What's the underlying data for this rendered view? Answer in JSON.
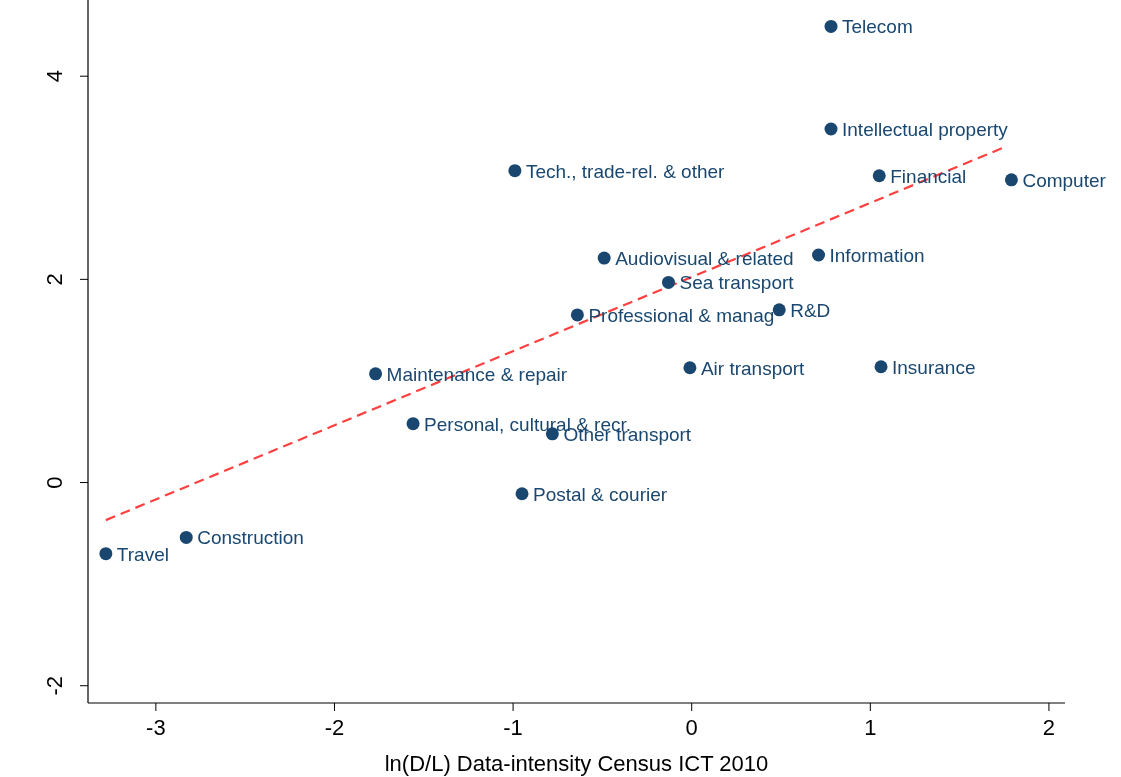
{
  "chart_data": {
    "type": "scatter",
    "xlabel": "ln(D/L) Data-intensity Census ICT 2010",
    "xlim": [
      -3.38,
      2.09
    ],
    "xticks": [
      -3,
      -2,
      -1,
      0,
      1,
      2
    ],
    "ylim": [
      -2.17,
      4.75
    ],
    "yticks": [
      -2,
      0,
      2,
      4
    ],
    "grid": false,
    "marker": "circle",
    "series": [
      {
        "color": "#1a476f",
        "x": [
          0.78,
          0.78,
          -0.99,
          1.05,
          1.79,
          -0.49,
          0.71,
          -0.13,
          -0.64,
          0.49,
          -1.77,
          -0.01,
          1.06,
          -1.56,
          -0.78,
          -0.95,
          -2.83,
          -3.28
        ],
        "values": [
          4.49,
          3.48,
          3.07,
          3.02,
          2.98,
          2.21,
          2.24,
          1.97,
          1.65,
          1.7,
          1.07,
          1.13,
          1.14,
          0.58,
          0.48,
          -0.11,
          -0.54,
          -0.7
        ]
      },
      {
        "type": "line",
        "color": "#ff4040",
        "line_style": "dashed",
        "marker": "none",
        "x": [
          -3.28,
          1.75
        ],
        "values": [
          -0.37,
          3.3
        ]
      }
    ],
    "annotations": [
      {
        "text": "Telecom",
        "x": 0.78,
        "y": 4.49
      },
      {
        "text": "Intellectual property",
        "x": 0.78,
        "y": 3.48
      },
      {
        "text": "Tech., trade-rel. & other",
        "x": -0.99,
        "y": 3.07
      },
      {
        "text": "Financial",
        "x": 1.05,
        "y": 3.02
      },
      {
        "text": "Computer",
        "x": 1.79,
        "y": 2.98
      },
      {
        "text": "Audiovisual & related",
        "x": -0.49,
        "y": 2.21
      },
      {
        "text": "Information",
        "x": 0.71,
        "y": 2.24
      },
      {
        "text": "Sea transport",
        "x": -0.13,
        "y": 1.97
      },
      {
        "text": "Professional & manag",
        "x": -0.64,
        "y": 1.65
      },
      {
        "text": "R&D",
        "x": 0.49,
        "y": 1.7
      },
      {
        "text": "Maintenance & repair",
        "x": -1.77,
        "y": 1.07
      },
      {
        "text": "Air transport",
        "x": -0.01,
        "y": 1.13
      },
      {
        "text": "Insurance",
        "x": 1.06,
        "y": 1.14
      },
      {
        "text": "Personal, cultural & recr.",
        "x": -1.56,
        "y": 0.58
      },
      {
        "text": "Other transport",
        "x": -0.78,
        "y": 0.48
      },
      {
        "text": "Postal & courier",
        "x": -0.95,
        "y": -0.11
      },
      {
        "text": "Construction",
        "x": -2.83,
        "y": -0.54
      },
      {
        "text": "Travel",
        "x": -3.28,
        "y": -0.7
      }
    ]
  }
}
